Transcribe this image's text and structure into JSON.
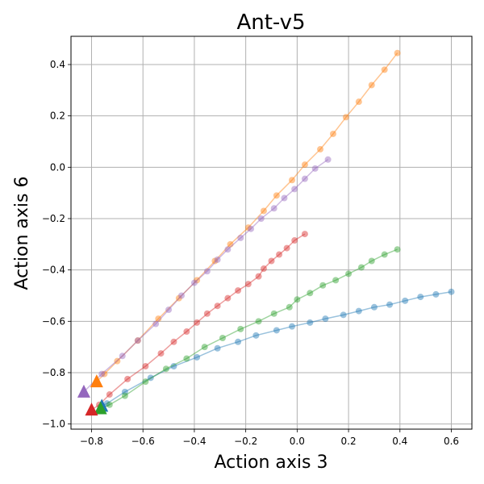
{
  "chart_data": {
    "type": "line",
    "title": "Ant-v5",
    "xlabel": "Action axis 3",
    "ylabel": "Action axis 6",
    "xlim": [
      -0.88,
      0.68
    ],
    "ylim": [
      -1.02,
      0.51
    ],
    "xticks": [
      -0.8,
      -0.6,
      -0.4,
      -0.2,
      0.0,
      0.2,
      0.4,
      0.6
    ],
    "yticks": [
      -1.0,
      -0.8,
      -0.6,
      -0.4,
      -0.2,
      0.0,
      0.2,
      0.4
    ],
    "xtick_labels": [
      "−0.8",
      "−0.6",
      "−0.4",
      "−0.2",
      "0.0",
      "0.2",
      "0.4",
      "0.6"
    ],
    "ytick_labels": [
      "−1.0",
      "−0.8",
      "−0.6",
      "−0.4",
      "−0.2",
      "0.0",
      "0.2",
      "0.4"
    ],
    "grid": true,
    "series": [
      {
        "name": "trajectory-blue",
        "color": "#1f77b4",
        "start": [
          -0.76,
          -0.93
        ],
        "points": [
          [
            -0.74,
            -0.92
          ],
          [
            -0.67,
            -0.875
          ],
          [
            -0.57,
            -0.82
          ],
          [
            -0.48,
            -0.775
          ],
          [
            -0.39,
            -0.74
          ],
          [
            -0.31,
            -0.705
          ],
          [
            -0.23,
            -0.68
          ],
          [
            -0.16,
            -0.655
          ],
          [
            -0.08,
            -0.635
          ],
          [
            -0.02,
            -0.62
          ],
          [
            0.05,
            -0.605
          ],
          [
            0.11,
            -0.59
          ],
          [
            0.18,
            -0.575
          ],
          [
            0.24,
            -0.56
          ],
          [
            0.3,
            -0.545
          ],
          [
            0.36,
            -0.535
          ],
          [
            0.42,
            -0.52
          ],
          [
            0.48,
            -0.505
          ],
          [
            0.54,
            -0.495
          ],
          [
            0.6,
            -0.485
          ]
        ]
      },
      {
        "name": "trajectory-orange",
        "color": "#ff7f0e",
        "start": [
          -0.78,
          -0.835
        ],
        "points": [
          [
            -0.75,
            -0.805
          ],
          [
            -0.7,
            -0.755
          ],
          [
            -0.62,
            -0.675
          ],
          [
            -0.54,
            -0.59
          ],
          [
            -0.46,
            -0.51
          ],
          [
            -0.39,
            -0.44
          ],
          [
            -0.32,
            -0.365
          ],
          [
            -0.26,
            -0.3
          ],
          [
            -0.19,
            -0.235
          ],
          [
            -0.13,
            -0.17
          ],
          [
            -0.08,
            -0.11
          ],
          [
            -0.02,
            -0.05
          ],
          [
            0.03,
            0.01
          ],
          [
            0.09,
            0.07
          ],
          [
            0.14,
            0.13
          ],
          [
            0.19,
            0.195
          ],
          [
            0.24,
            0.255
          ],
          [
            0.29,
            0.32
          ],
          [
            0.34,
            0.38
          ],
          [
            0.39,
            0.445
          ]
        ]
      },
      {
        "name": "trajectory-green",
        "color": "#2ca02c",
        "start": [
          -0.765,
          -0.94
        ],
        "points": [
          [
            -0.73,
            -0.925
          ],
          [
            -0.67,
            -0.89
          ],
          [
            -0.59,
            -0.835
          ],
          [
            -0.51,
            -0.785
          ],
          [
            -0.43,
            -0.745
          ],
          [
            -0.36,
            -0.7
          ],
          [
            -0.29,
            -0.665
          ],
          [
            -0.22,
            -0.63
          ],
          [
            -0.15,
            -0.6
          ],
          [
            -0.09,
            -0.57
          ],
          [
            -0.03,
            -0.545
          ],
          [
            0.0,
            -0.515
          ],
          [
            0.05,
            -0.49
          ],
          [
            0.1,
            -0.46
          ],
          [
            0.15,
            -0.44
          ],
          [
            0.2,
            -0.415
          ],
          [
            0.25,
            -0.39
          ],
          [
            0.29,
            -0.365
          ],
          [
            0.34,
            -0.34
          ],
          [
            0.39,
            -0.32
          ]
        ]
      },
      {
        "name": "trajectory-red",
        "color": "#d62728",
        "start": [
          -0.8,
          -0.945
        ],
        "points": [
          [
            -0.77,
            -0.925
          ],
          [
            -0.73,
            -0.885
          ],
          [
            -0.66,
            -0.825
          ],
          [
            -0.59,
            -0.775
          ],
          [
            -0.53,
            -0.725
          ],
          [
            -0.48,
            -0.68
          ],
          [
            -0.43,
            -0.64
          ],
          [
            -0.39,
            -0.605
          ],
          [
            -0.35,
            -0.57
          ],
          [
            -0.31,
            -0.54
          ],
          [
            -0.27,
            -0.51
          ],
          [
            -0.23,
            -0.48
          ],
          [
            -0.19,
            -0.455
          ],
          [
            -0.15,
            -0.425
          ],
          [
            -0.13,
            -0.395
          ],
          [
            -0.1,
            -0.365
          ],
          [
            -0.07,
            -0.34
          ],
          [
            -0.04,
            -0.315
          ],
          [
            -0.01,
            -0.285
          ],
          [
            0.03,
            -0.26
          ]
        ]
      },
      {
        "name": "trajectory-purple",
        "color": "#9467bd",
        "start": [
          -0.83,
          -0.875
        ],
        "points": [
          [
            -0.76,
            -0.805
          ],
          [
            -0.68,
            -0.735
          ],
          [
            -0.62,
            -0.675
          ],
          [
            -0.55,
            -0.61
          ],
          [
            -0.5,
            -0.555
          ],
          [
            -0.45,
            -0.5
          ],
          [
            -0.4,
            -0.45
          ],
          [
            -0.35,
            -0.405
          ],
          [
            -0.31,
            -0.36
          ],
          [
            -0.27,
            -0.32
          ],
          [
            -0.22,
            -0.275
          ],
          [
            -0.18,
            -0.24
          ],
          [
            -0.14,
            -0.2
          ],
          [
            -0.09,
            -0.16
          ],
          [
            -0.05,
            -0.12
          ],
          [
            -0.01,
            -0.085
          ],
          [
            0.03,
            -0.045
          ],
          [
            0.07,
            -0.005
          ],
          [
            0.12,
            0.03
          ]
        ]
      }
    ]
  }
}
